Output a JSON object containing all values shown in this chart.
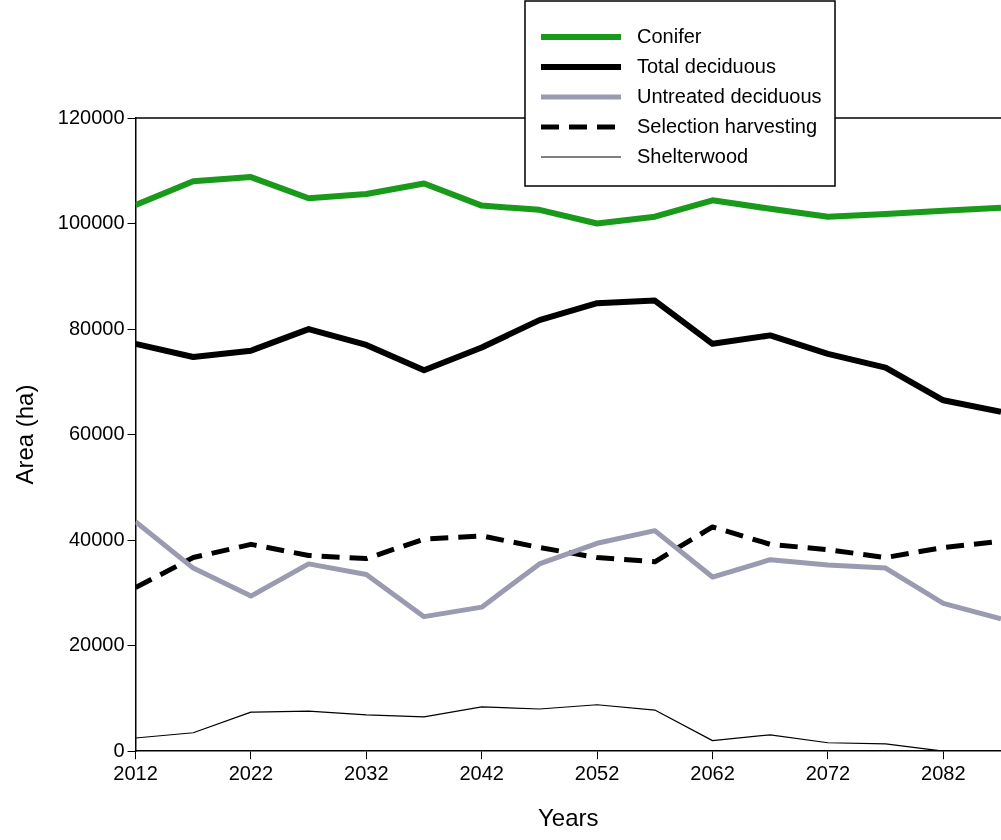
{
  "chart_data": {
    "type": "line",
    "xlabel": "Years",
    "ylabel": "Area (ha)",
    "x": [
      2012,
      2017,
      2022,
      2027,
      2032,
      2037,
      2042,
      2047,
      2052,
      2057,
      2062,
      2067,
      2072,
      2077,
      2082,
      2087
    ],
    "xlim": [
      2012,
      2087
    ],
    "xticks": [
      2012,
      2022,
      2032,
      2042,
      2052,
      2062,
      2072,
      2082
    ],
    "ylim": [
      0,
      120000
    ],
    "yticks": [
      0,
      20000,
      40000,
      60000,
      80000,
      100000,
      120000
    ],
    "grid": false,
    "legend": "top right",
    "marker": "none",
    "series": [
      {
        "name": "Conifer",
        "color": "#1a9a1a",
        "line_style": "solid",
        "values": [
          103500,
          108000,
          108800,
          104800,
          105600,
          107600,
          103400,
          102600,
          100000,
          101300,
          104400,
          102800,
          101300,
          101800,
          102400,
          103000
        ]
      },
      {
        "name": "Total deciduous",
        "color": "#000000",
        "line_style": "solid",
        "values": [
          77200,
          74700,
          75900,
          80000,
          77000,
          72200,
          76500,
          81700,
          84900,
          85400,
          77200,
          78800,
          75300,
          72700,
          66500,
          64300
        ]
      },
      {
        "name": "Untreated deciduous",
        "color": "#9a9ab0",
        "line_style": "solid",
        "values": [
          43500,
          34700,
          29400,
          35500,
          33500,
          25500,
          27300,
          35500,
          39400,
          41800,
          33000,
          36300,
          35300,
          34700,
          28000,
          25100
        ]
      },
      {
        "name": "Selection harvesting",
        "color": "#000000",
        "line_style": "dashed",
        "values": [
          31000,
          36700,
          39200,
          37100,
          36500,
          40200,
          40800,
          38600,
          36700,
          35900,
          42500,
          39200,
          38200,
          36700,
          38600,
          39800
        ]
      },
      {
        "name": "Shelterwood",
        "color": "#000000",
        "line_style": "solid",
        "values": [
          2500,
          3500,
          7400,
          7600,
          6900,
          6500,
          8400,
          8000,
          8800,
          7800,
          2000,
          3100,
          1600,
          1400,
          0,
          null
        ]
      }
    ]
  }
}
